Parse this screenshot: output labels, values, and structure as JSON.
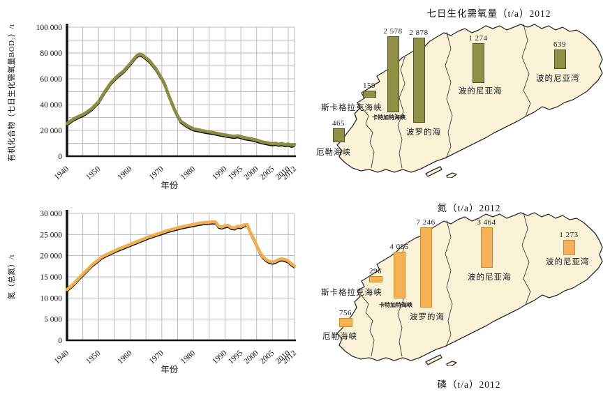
{
  "chart_data": [
    {
      "type": "line",
      "title": "",
      "ylabel": "有机化合物（七日生化需氧量BOD₇）/t",
      "xlabel": "年份",
      "xlim": [
        1940,
        2012
      ],
      "ylim": [
        0,
        100000
      ],
      "ygrid": 10000,
      "grid": "on",
      "yticks": [
        {
          "v": 0,
          "label": "0"
        },
        {
          "v": 20000,
          "label": "20 000"
        },
        {
          "v": 40000,
          "label": "40 000"
        },
        {
          "v": 60000,
          "label": "60 000"
        },
        {
          "v": 80000,
          "label": "80 000"
        },
        {
          "v": 100000,
          "label": "100 000"
        }
      ],
      "xticks": [
        {
          "v": 1940,
          "label": "1940"
        },
        {
          "v": 1950,
          "label": "1950"
        },
        {
          "v": 1960,
          "label": "1960"
        },
        {
          "v": 1970,
          "label": "1970"
        },
        {
          "v": 1980,
          "label": "1980"
        },
        {
          "v": 1990,
          "label": "1990"
        },
        {
          "v": 1995,
          "label": "1995"
        },
        {
          "v": 2000,
          "label": "2000"
        },
        {
          "v": 2005,
          "label": "2005"
        },
        {
          "v": 2010,
          "label": "2010"
        },
        {
          "v": 2012,
          "label": "2012"
        }
      ],
      "series": [
        {
          "name": "BOD7",
          "color": "#8B8D43",
          "points": [
            [
              1940,
              25000
            ],
            [
              1942,
              28500
            ],
            [
              1944,
              31000
            ],
            [
              1945,
              32000
            ],
            [
              1946,
              33500
            ],
            [
              1948,
              37000
            ],
            [
              1950,
              42000
            ],
            [
              1952,
              50000
            ],
            [
              1954,
              57000
            ],
            [
              1956,
              62000
            ],
            [
              1958,
              66000
            ],
            [
              1960,
              71500
            ],
            [
              1962,
              77500
            ],
            [
              1963,
              79000
            ],
            [
              1964,
              78000
            ],
            [
              1966,
              74000
            ],
            [
              1968,
              68000
            ],
            [
              1970,
              60000
            ],
            [
              1971,
              55000
            ],
            [
              1972,
              48000
            ],
            [
              1973,
              42000
            ],
            [
              1974,
              36000
            ],
            [
              1975,
              31000
            ],
            [
              1976,
              27000
            ],
            [
              1978,
              23500
            ],
            [
              1980,
              21000
            ],
            [
              1982,
              20000
            ],
            [
              1984,
              19000
            ],
            [
              1986,
              18200
            ],
            [
              1988,
              17200
            ],
            [
              1990,
              16300
            ],
            [
              1992,
              15400
            ],
            [
              1993,
              15200
            ],
            [
              1994,
              15600
            ],
            [
              1995,
              15000
            ],
            [
              1996,
              14200
            ],
            [
              1997,
              13800
            ],
            [
              1998,
              13400
            ],
            [
              2000,
              12200
            ],
            [
              2001,
              11400
            ],
            [
              2002,
              10800
            ],
            [
              2003,
              10300
            ],
            [
              2004,
              9800
            ],
            [
              2005,
              9400
            ],
            [
              2006,
              9800
            ],
            [
              2007,
              9000
            ],
            [
              2008,
              9600
            ],
            [
              2009,
              8600
            ],
            [
              2010,
              9200
            ],
            [
              2011,
              8200
            ],
            [
              2012,
              8800
            ]
          ]
        }
      ]
    },
    {
      "type": "line",
      "title": "",
      "ylabel": "氮（总氮）/t",
      "xlabel": "年份",
      "xlim": [
        1940,
        2012
      ],
      "ylim": [
        0,
        30000
      ],
      "ygrid": 5000,
      "grid": "on",
      "yticks": [
        {
          "v": 0,
          "label": "0"
        },
        {
          "v": 5000,
          "label": "5 000"
        },
        {
          "v": 10000,
          "label": "10 000"
        },
        {
          "v": 15000,
          "label": "15 000"
        },
        {
          "v": 20000,
          "label": "20 000"
        },
        {
          "v": 25000,
          "label": "25 000"
        },
        {
          "v": 30000,
          "label": "30 000"
        }
      ],
      "xticks": [
        {
          "v": 1940,
          "label": "1940"
        },
        {
          "v": 1950,
          "label": "1950"
        },
        {
          "v": 1960,
          "label": "1960"
        },
        {
          "v": 1970,
          "label": "1970"
        },
        {
          "v": 1980,
          "label": "1980"
        },
        {
          "v": 1990,
          "label": "1990"
        },
        {
          "v": 1995,
          "label": "1995"
        },
        {
          "v": 2000,
          "label": "2000"
        },
        {
          "v": 2005,
          "label": "2005"
        },
        {
          "v": 2010,
          "label": "2010"
        },
        {
          "v": 2012,
          "label": "2012"
        }
      ],
      "series": [
        {
          "name": "总氮",
          "color": "#F0AE52",
          "points": [
            [
              1940,
              11900
            ],
            [
              1942,
              13200
            ],
            [
              1944,
              14800
            ],
            [
              1946,
              16300
            ],
            [
              1948,
              17800
            ],
            [
              1950,
              19000
            ],
            [
              1951,
              19600
            ],
            [
              1952,
              20000
            ],
            [
              1954,
              20700
            ],
            [
              1956,
              21400
            ],
            [
              1958,
              22000
            ],
            [
              1960,
              22600
            ],
            [
              1962,
              23200
            ],
            [
              1964,
              23800
            ],
            [
              1966,
              24400
            ],
            [
              1968,
              24900
            ],
            [
              1970,
              25400
            ],
            [
              1972,
              25900
            ],
            [
              1974,
              26300
            ],
            [
              1976,
              26700
            ],
            [
              1978,
              27000
            ],
            [
              1980,
              27300
            ],
            [
              1982,
              27600
            ],
            [
              1984,
              27800
            ],
            [
              1986,
              27900
            ],
            [
              1987,
              27900
            ],
            [
              1988,
              26900
            ],
            [
              1989,
              26700
            ],
            [
              1990,
              27000
            ],
            [
              1991,
              27100
            ],
            [
              1992,
              26600
            ],
            [
              1993,
              26500
            ],
            [
              1994,
              26900
            ],
            [
              1995,
              26800
            ],
            [
              1996,
              27200
            ],
            [
              1997,
              27300
            ],
            [
              1998,
              25500
            ],
            [
              1999,
              24000
            ],
            [
              2000,
              22400
            ],
            [
              2001,
              20800
            ],
            [
              2002,
              19700
            ],
            [
              2003,
              19000
            ],
            [
              2004,
              18600
            ],
            [
              2005,
              18400
            ],
            [
              2006,
              18600
            ],
            [
              2007,
              19000
            ],
            [
              2008,
              19200
            ],
            [
              2009,
              19000
            ],
            [
              2010,
              18700
            ],
            [
              2011,
              18000
            ],
            [
              2012,
              17500
            ]
          ]
        }
      ]
    },
    {
      "type": "bar",
      "title": "七日生化需氧量（t/a）2012",
      "categories": [
        "厄勒海峡",
        "斯卡格拉克海峡",
        "卡特加特海峡",
        "波罗的海",
        "波的尼亚海",
        "波的尼亚湾"
      ],
      "values": [
        465,
        159,
        2578,
        2878,
        1274,
        639
      ],
      "unit": "t/a"
    },
    {
      "type": "bar",
      "title": "氮（t/a）2012",
      "categories": [
        "厄勒海峡",
        "斯卡格拉克海峡",
        "卡特加特海峡",
        "波罗的海",
        "波的尼亚海",
        "波的尼亚湾"
      ],
      "values": [
        756,
        296,
        4085,
        7246,
        3464,
        1273
      ],
      "unit": "t/a"
    }
  ],
  "maps": {
    "bod": {
      "title": "七日生化需氧量（t/a）2012",
      "bar_color": "#8E9046",
      "bar_border": "#50512A",
      "bars": [
        {
          "region": "厄勒海峡",
          "value": "465"
        },
        {
          "region": "斯卡格拉克海峡",
          "value": "159"
        },
        {
          "region": "卡特加特海峡",
          "value": "2 578"
        },
        {
          "region": "波罗的海",
          "value": "2 878"
        },
        {
          "region": "波的尼亚海",
          "value": "1 274"
        },
        {
          "region": "波的尼亚湾",
          "value": "639"
        }
      ]
    },
    "nitrogen": {
      "title": "氮（t/a）2012",
      "bar_color": "#F5B155",
      "bar_border": "#CF8A28",
      "bars": [
        {
          "region": "厄勒海峡",
          "value": "756"
        },
        {
          "region": "斯卡格拉克海峡",
          "value": "296"
        },
        {
          "region": "卡特加特海峡",
          "value": "4 085"
        },
        {
          "region": "波罗的海",
          "value": "7 246"
        },
        {
          "region": "波的尼亚海",
          "value": "3 464"
        },
        {
          "region": "波的尼亚湾",
          "value": "1 273"
        }
      ]
    },
    "phosphorus_caption": "磷（t/a）2012",
    "land_color": "#FAF3D8",
    "outline_color": "#2B2B2B"
  }
}
